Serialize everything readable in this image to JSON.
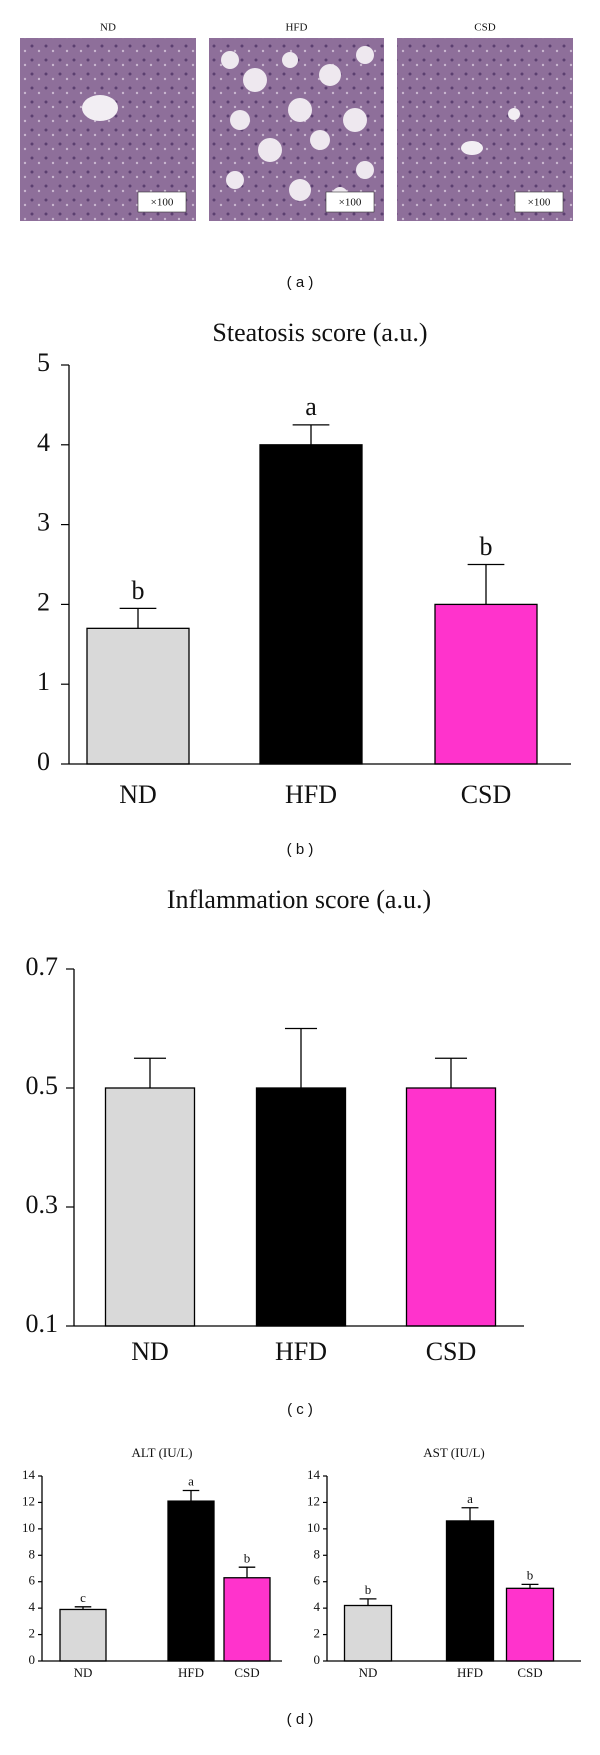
{
  "images": {
    "labels": [
      "ND",
      "HFD",
      "CSD"
    ],
    "magnifications": [
      "×100",
      "×100",
      "×100"
    ]
  },
  "panel_labels": [
    "( a )",
    "( b )",
    "( c )",
    "( d )"
  ],
  "chart_data": [
    {
      "type": "bar",
      "title": "Steatosis score (a.u.)",
      "categories": [
        "ND",
        "HFD",
        "CSD"
      ],
      "values": [
        1.7,
        4.0,
        2.0
      ],
      "errors": [
        0.25,
        0.25,
        0.5
      ],
      "annotations": [
        "b",
        "a",
        "b"
      ],
      "colors": [
        "#d9d9d9",
        "#000000",
        "#ff33cc"
      ],
      "ylim": [
        0,
        5
      ],
      "yticks": [
        0,
        1,
        2,
        3,
        4,
        5
      ]
    },
    {
      "type": "bar",
      "title": "Inflammation score (a.u.)",
      "categories": [
        "ND",
        "HFD",
        "CSD"
      ],
      "values": [
        0.5,
        0.5,
        0.5
      ],
      "errors": [
        0.05,
        0.1,
        0.05
      ],
      "colors": [
        "#d9d9d9",
        "#000000",
        "#ff33cc"
      ],
      "ylim": [
        0.1,
        0.7
      ],
      "yticks": [
        0.1,
        0.3,
        0.5,
        0.7
      ]
    },
    {
      "type": "bar",
      "title": "ALT (IU/L)",
      "categories": [
        "ND",
        "HFD",
        "CSD"
      ],
      "values": [
        3.9,
        12.1,
        6.3
      ],
      "errors": [
        0.2,
        0.8,
        0.8
      ],
      "annotations": [
        "c",
        "a",
        "b"
      ],
      "colors": [
        "#d9d9d9",
        "#000000",
        "#ff33cc"
      ],
      "ylim": [
        0,
        14
      ],
      "yticks": [
        0,
        2,
        4,
        6,
        8,
        10,
        12,
        14
      ]
    },
    {
      "type": "bar",
      "title": "AST (IU/L)",
      "categories": [
        "ND",
        "HFD",
        "CSD"
      ],
      "values": [
        4.2,
        10.6,
        5.5
      ],
      "errors": [
        0.5,
        1.0,
        0.3
      ],
      "annotations": [
        "b",
        "a",
        "b"
      ],
      "colors": [
        "#d9d9d9",
        "#000000",
        "#ff33cc"
      ],
      "ylim": [
        0,
        14
      ],
      "yticks": [
        0,
        2,
        4,
        6,
        8,
        10,
        12,
        14
      ]
    }
  ]
}
